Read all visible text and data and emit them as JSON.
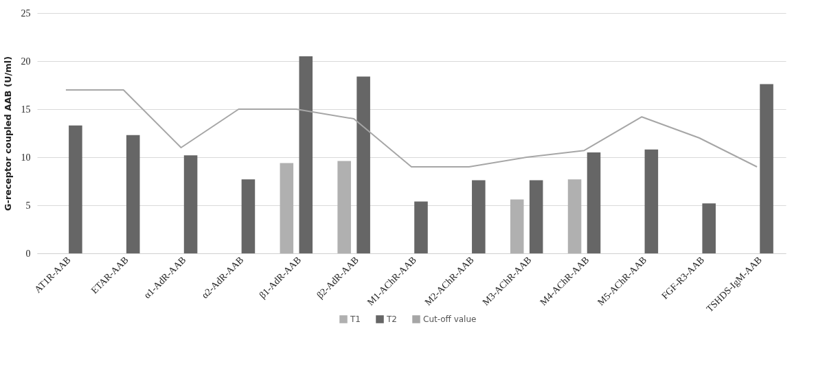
{
  "chart_data": {
    "type": "bar",
    "ylabel": "G-receptor coupled AAB (U/ml)",
    "categories": [
      "AT1R-AAB",
      "ETAR-AAB",
      "α1-AdR-AAB",
      "α2-AdR-AAB",
      "β1-AdR-AAB",
      "β2-AdR-AAB",
      "M1-AChR-AAB",
      "M2-AChR-AAB",
      "M3-AChR-AAB",
      "M4-AChR-AAB",
      "M5-AChR-AAB",
      "FGF-R3-AAB",
      "TSHDS-IgM-AAB"
    ],
    "series": [
      {
        "name": "T1",
        "color": "#b0b0b0",
        "values": [
          null,
          null,
          null,
          null,
          9.4,
          9.6,
          null,
          null,
          5.6,
          7.7,
          null,
          null,
          null
        ]
      },
      {
        "name": "T2",
        "color": "#666666",
        "values": [
          13.3,
          12.3,
          10.2,
          7.7,
          20.5,
          18.4,
          5.4,
          7.6,
          7.6,
          10.5,
          10.8,
          5.2,
          17.6
        ]
      },
      {
        "name": "Cut-off value",
        "type": "line",
        "color": "#a6a6a6",
        "values": [
          17,
          17,
          11,
          15,
          15,
          14,
          9,
          9,
          10,
          10.7,
          14.2,
          12,
          9
        ]
      }
    ],
    "ylim": [
      0,
      25
    ],
    "yticks": [
      0,
      5,
      10,
      15,
      20,
      25
    ],
    "grid": "y",
    "legend": "bottom"
  }
}
